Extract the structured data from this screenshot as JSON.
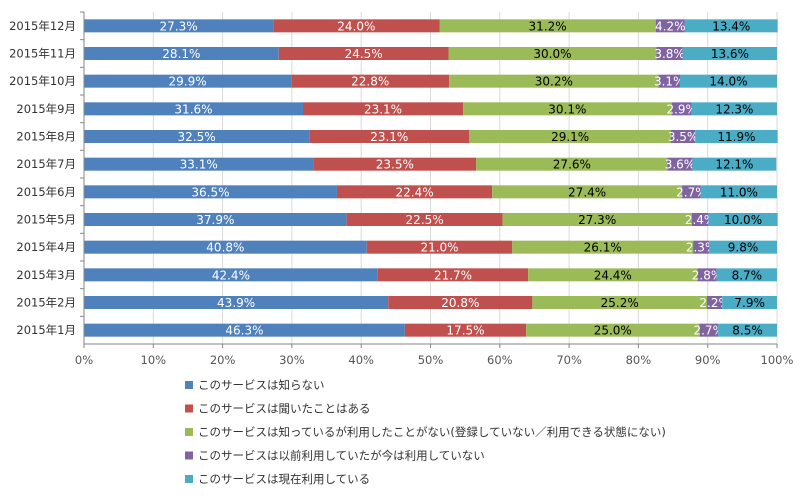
{
  "chart_data": {
    "type": "bar",
    "orientation": "horizontal",
    "stacked": true,
    "percent": true,
    "categories": [
      "2015年12月",
      "2015年11月",
      "2015年10月",
      "2015年9月",
      "2015年8月",
      "2015年7月",
      "2015年6月",
      "2015年5月",
      "2015年4月",
      "2015年3月",
      "2015年2月",
      "2015年1月"
    ],
    "series": [
      {
        "name": "このサービスは知らない",
        "color": "#4f81bd",
        "label_color": "#ffffff",
        "values": [
          27.3,
          28.1,
          29.9,
          31.6,
          32.5,
          33.1,
          36.5,
          37.9,
          40.8,
          42.4,
          43.9,
          46.3
        ]
      },
      {
        "name": "このサービスは聞いたことはある",
        "color": "#c0504d",
        "label_color": "#ffffff",
        "values": [
          24.0,
          24.5,
          22.8,
          23.1,
          23.1,
          23.5,
          22.4,
          22.5,
          21.0,
          21.7,
          20.8,
          17.5
        ]
      },
      {
        "name": "このサービスは知っているが利用したことがない(登録していない／利用できる状態にない)",
        "color": "#9bbb59",
        "label_color": "#000000",
        "values": [
          31.2,
          30.0,
          30.2,
          30.1,
          29.1,
          27.6,
          27.4,
          27.3,
          26.1,
          24.4,
          25.2,
          25.0
        ]
      },
      {
        "name": "このサービスは以前利用していたが今は利用していない",
        "color": "#8064a2",
        "label_color": "#ffffff",
        "values": [
          4.2,
          3.8,
          3.1,
          2.9,
          3.5,
          3.6,
          2.7,
          2.4,
          2.3,
          2.8,
          2.2,
          2.7
        ]
      },
      {
        "name": "このサービスは現在利用している",
        "color": "#4bacc6",
        "label_color": "#000000",
        "values": [
          13.4,
          13.6,
          14.0,
          12.3,
          11.9,
          12.1,
          11.0,
          10.0,
          9.8,
          8.7,
          7.9,
          8.5
        ]
      }
    ],
    "x_ticks": [
      "0%",
      "10%",
      "20%",
      "30%",
      "40%",
      "50%",
      "60%",
      "70%",
      "80%",
      "90%",
      "100%"
    ],
    "xlim": [
      0,
      100
    ],
    "grid": true,
    "legend_position": "bottom"
  }
}
